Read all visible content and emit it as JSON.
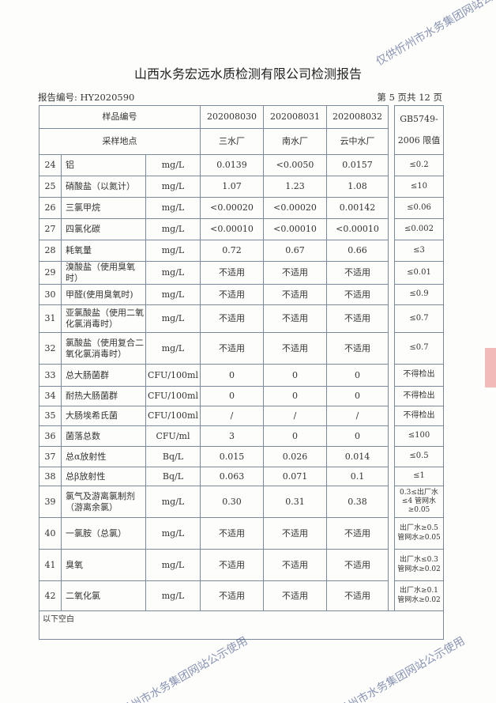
{
  "title": "山西水务宏远水质检测有限公司检测报告",
  "report_no": "报告编号: HY2020590",
  "page": "第 5 页共 12 页",
  "header": {
    "sample_no_label": "样品编号",
    "site_label": "采样地点",
    "samples": [
      "202008030",
      "202008031",
      "202008032"
    ],
    "sites": [
      "三水厂",
      "南水厂",
      "云中水厂"
    ],
    "limit_label": "GB5749-2006 限值"
  },
  "rows": [
    {
      "no": "24",
      "name": "铝",
      "unit": "mg/L",
      "v": [
        "0.0139",
        "<0.0050",
        "0.0157"
      ],
      "limit": "≤0.2"
    },
    {
      "no": "25",
      "name": "硝酸盐（以氮计）",
      "unit": "mg/L",
      "v": [
        "1.07",
        "1.23",
        "1.08"
      ],
      "limit": "≤10"
    },
    {
      "no": "26",
      "name": "三氯甲烷",
      "unit": "mg/L",
      "v": [
        "<0.00020",
        "<0.00020",
        "0.00142"
      ],
      "limit": "≤0.06"
    },
    {
      "no": "27",
      "name": "四氯化碳",
      "unit": "mg/L",
      "v": [
        "<0.00010",
        "<0.00010",
        "<0.00010"
      ],
      "limit": "≤0.002"
    },
    {
      "no": "28",
      "name": "耗氧量",
      "unit": "mg/L",
      "v": [
        "0.72",
        "0.67",
        "0.66"
      ],
      "limit": "≤3"
    },
    {
      "no": "29",
      "name": "溴酸盐（使用臭氧时）",
      "unit": "mg/L",
      "v": [
        "不适用",
        "不适用",
        "不适用"
      ],
      "limit": "≤0.01"
    },
    {
      "no": "30",
      "name": "甲醛(使用臭氧时)",
      "unit": "mg/L",
      "v": [
        "不适用",
        "不适用",
        "不适用"
      ],
      "limit": "≤0.9"
    },
    {
      "no": "31",
      "name": "亚氯酸盐（使用二氧化氯消毒时）",
      "unit": "mg/L",
      "v": [
        "不适用",
        "不适用",
        "不适用"
      ],
      "limit": "≤0.7"
    },
    {
      "no": "32",
      "name": "氯酸盐（使用复合二氧化氯消毒时）",
      "unit": "mg/L",
      "v": [
        "不适用",
        "不适用",
        "不适用"
      ],
      "limit": "≤0.7"
    },
    {
      "no": "33",
      "name": "总大肠菌群",
      "unit": "CFU/100ml",
      "v": [
        "0",
        "0",
        "0"
      ],
      "limit": "不得检出"
    },
    {
      "no": "34",
      "name": "耐热大肠菌群",
      "unit": "CFU/100ml",
      "v": [
        "0",
        "0",
        "0"
      ],
      "limit": "不得检出"
    },
    {
      "no": "35",
      "name": "大肠埃希氏菌",
      "unit": "CFU/100ml",
      "v": [
        "/",
        "/",
        "/"
      ],
      "limit": "不得检出"
    },
    {
      "no": "36",
      "name": "菌落总数",
      "unit": "CFU/ml",
      "v": [
        "3",
        "0",
        "0"
      ],
      "limit": "≤100"
    },
    {
      "no": "37",
      "name": "总α放射性",
      "unit": "Bq/L",
      "v": [
        "0.015",
        "0.026",
        "0.014"
      ],
      "limit": "≤0.5"
    },
    {
      "no": "38",
      "name": "总β放射性",
      "unit": "Bq/L",
      "v": [
        "0.063",
        "0.071",
        "0.1"
      ],
      "limit": "≤1"
    },
    {
      "no": "39",
      "name": "氯气及游离氯制剂（游离余氯）",
      "unit": "mg/L",
      "v": [
        "0.30",
        "0.31",
        "0.38"
      ],
      "limit": "0.3≤出厂水≤4 管网水≥0.05"
    },
    {
      "no": "40",
      "name": "一氯胺（总氯）",
      "unit": "mg/L",
      "v": [
        "不适用",
        "不适用",
        "不适用"
      ],
      "limit": "出厂水≥0.5 管网水≥0.05"
    },
    {
      "no": "41",
      "name": "臭氧",
      "unit": "mg/L",
      "v": [
        "不适用",
        "不适用",
        "不适用"
      ],
      "limit": "出厂水≤0.3 管网水≥0.02"
    },
    {
      "no": "42",
      "name": "二氧化氯",
      "unit": "mg/L",
      "v": [
        "不适用",
        "不适用",
        "不适用"
      ],
      "limit": "出厂水≥0.1 管网水≥0.02"
    }
  ],
  "footer_note": "以下空白",
  "watermark": "仅供忻州市水务集团网站公示使用"
}
